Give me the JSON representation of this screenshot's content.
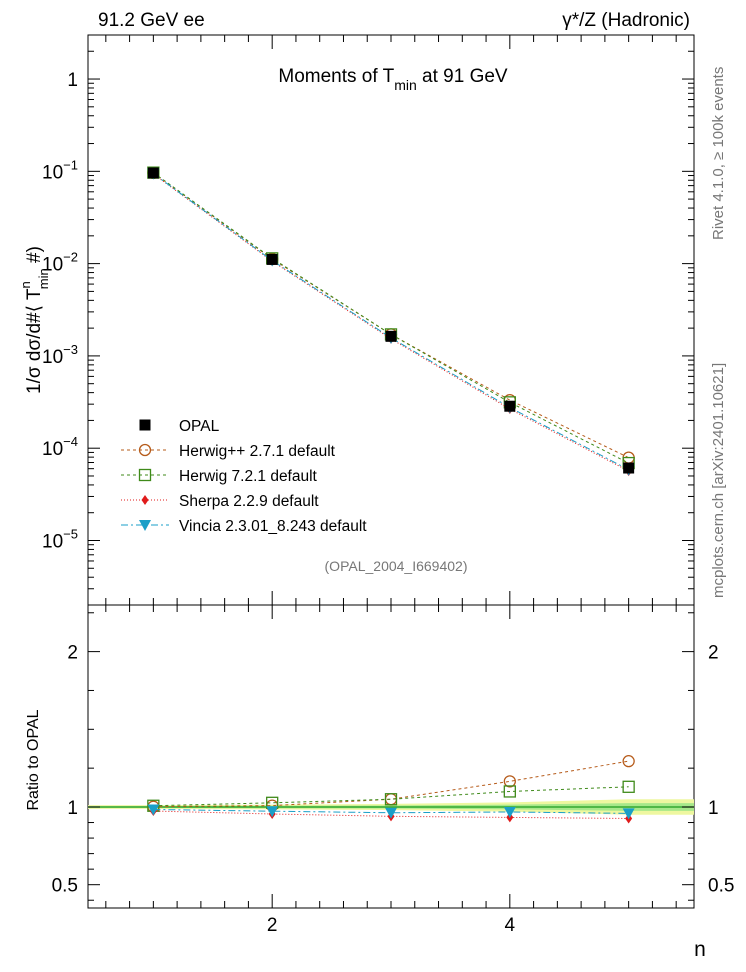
{
  "header": {
    "left": "91.2 GeV ee",
    "right": "γ*/Z (Hadronic)"
  },
  "side": {
    "rivet": "Rivet 4.1.0, ≥ 100k events",
    "mcplots": "mcplots.cern.ch [arXiv:2401.10621]"
  },
  "chart_data": [
    {
      "type": "line",
      "yscale": "log",
      "title_main": "Moments of T",
      "title_sub": "min",
      "title_tail": " at 91 GeV",
      "ylabel": {
        "a": "1/σ  dσ/d#⟨ T",
        "sup": "n",
        "sub": "min",
        "b": " #)"
      },
      "xlim": [
        0.45,
        5.55
      ],
      "ylim": [
        2e-06,
        3
      ],
      "y_ticks": [
        {
          "value": 1e-05,
          "base": "10",
          "exp": "−5"
        },
        {
          "value": 0.0001,
          "base": "10",
          "exp": "−4"
        },
        {
          "value": 0.001,
          "base": "10",
          "exp": "−3"
        },
        {
          "value": 0.01,
          "base": "10",
          "exp": "−2"
        },
        {
          "value": 0.1,
          "base": "10",
          "exp": "−1"
        },
        {
          "value": 1,
          "base": "1",
          "exp": ""
        }
      ],
      "x": [
        1,
        2,
        3,
        4,
        5
      ],
      "watermark": "(OPAL_2004_I669402)",
      "series": [
        {
          "name": "OPAL",
          "color": "#000000",
          "marker": "square-filled",
          "dash": "",
          "values": [
            0.096,
            0.0111,
            0.00163,
            0.000285,
            6.1e-05
          ]
        },
        {
          "name": "Herwig++ 2.7.1 default",
          "color": "#b65b1a",
          "marker": "circle-open",
          "dash": "3,3",
          "values": [
            0.0962,
            0.0112,
            0.00171,
            0.000332,
            7.9e-05
          ]
        },
        {
          "name": "Herwig 7.2.1 default",
          "color": "#3f8a1a",
          "marker": "square-open",
          "dash": "3,3",
          "values": [
            0.0968,
            0.0114,
            0.00171,
            0.000314,
            6.9e-05
          ]
        },
        {
          "name": "Sherpa 2.2.9 default",
          "color": "#e01b1b",
          "marker": "diamond-filled",
          "dash": "1,2",
          "values": [
            0.0935,
            0.0106,
            0.00153,
            0.000266,
            5.65e-05
          ]
        },
        {
          "name": "Vincia 2.3.01_8.243 default",
          "color": "#1a9fc8",
          "marker": "triangle-down-filled",
          "dash": "7,3,2,3",
          "values": [
            0.0945,
            0.0108,
            0.00157,
            0.000276,
            5.85e-05
          ]
        }
      ]
    },
    {
      "type": "line",
      "ylabel": "Ratio to OPAL",
      "xlabel": "n",
      "xlim": [
        0.45,
        5.55
      ],
      "ylim": [
        0.35,
        2.3
      ],
      "y_ticks": [
        {
          "value": 0.5,
          "label": "0.5"
        },
        {
          "value": 1,
          "label": "1"
        },
        {
          "value": 2,
          "label": "2"
        }
      ],
      "x_ticks": [
        {
          "value": 2,
          "label": "2"
        },
        {
          "value": 4,
          "label": "4"
        }
      ],
      "x": [
        1,
        2,
        3,
        4,
        5
      ],
      "uncertainty_band": {
        "x": [
          0.45,
          1,
          2,
          3,
          4,
          5,
          5.55
        ],
        "inner": [
          0.006,
          0.006,
          0.008,
          0.01,
          0.015,
          0.025,
          0.025
        ],
        "outer": [
          0.012,
          0.012,
          0.015,
          0.02,
          0.03,
          0.05,
          0.05
        ]
      },
      "series": [
        {
          "name": "Herwig++ 2.7.1 default",
          "values": [
            1.002,
            1.009,
            1.05,
            1.165,
            1.295
          ]
        },
        {
          "name": "Herwig 7.2.1 default",
          "values": [
            1.008,
            1.027,
            1.05,
            1.1,
            1.13
          ]
        },
        {
          "name": "Sherpa 2.2.9 default",
          "values": [
            0.974,
            0.955,
            0.94,
            0.933,
            0.926
          ]
        },
        {
          "name": "Vincia 2.3.01_8.243 default",
          "values": [
            0.984,
            0.973,
            0.963,
            0.968,
            0.959
          ]
        }
      ]
    }
  ]
}
